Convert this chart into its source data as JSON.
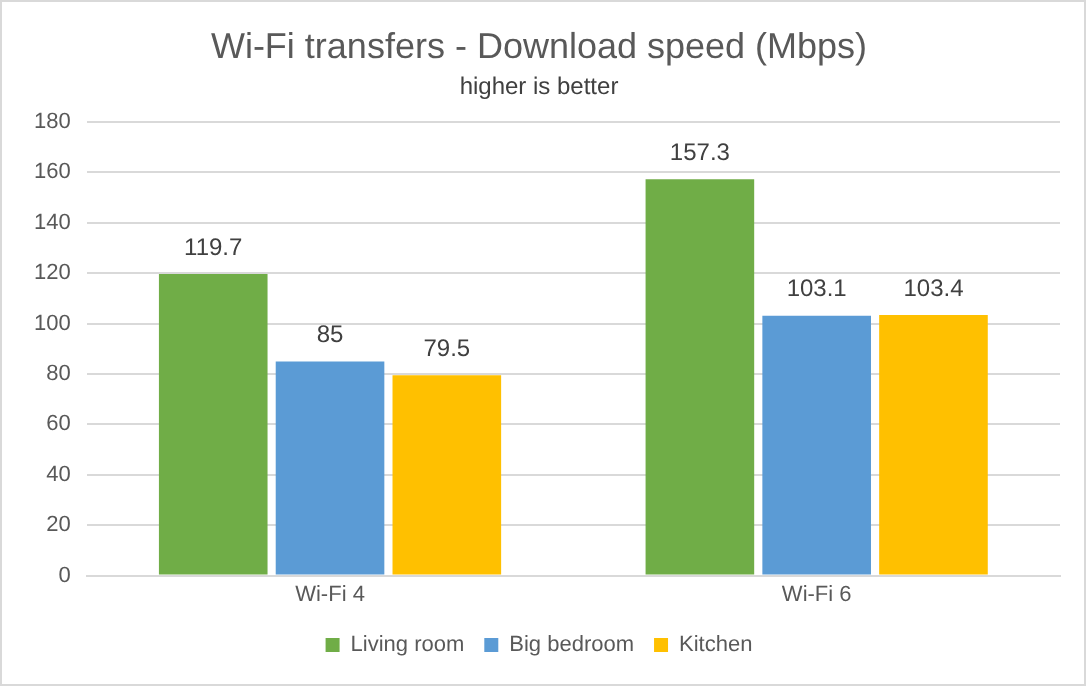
{
  "chart_data": {
    "type": "bar",
    "title": "Wi-Fi transfers - Download speed (Mbps)",
    "subtitle": "higher is better",
    "categories": [
      "Wi-Fi 4",
      "Wi-Fi 6"
    ],
    "series": [
      {
        "name": "Living room",
        "color": "#70ad47",
        "values": [
          119.7,
          157.3
        ]
      },
      {
        "name": "Big bedroom",
        "color": "#5b9bd5",
        "values": [
          85,
          103.1
        ]
      },
      {
        "name": "Kitchen",
        "color": "#ffc000",
        "values": [
          79.5,
          103.4
        ]
      }
    ],
    "ylim": [
      0,
      180
    ],
    "yticks": [
      0,
      20,
      40,
      60,
      80,
      100,
      120,
      140,
      160,
      180
    ],
    "grid": "y",
    "legend": "bottom",
    "data_labels": true
  }
}
